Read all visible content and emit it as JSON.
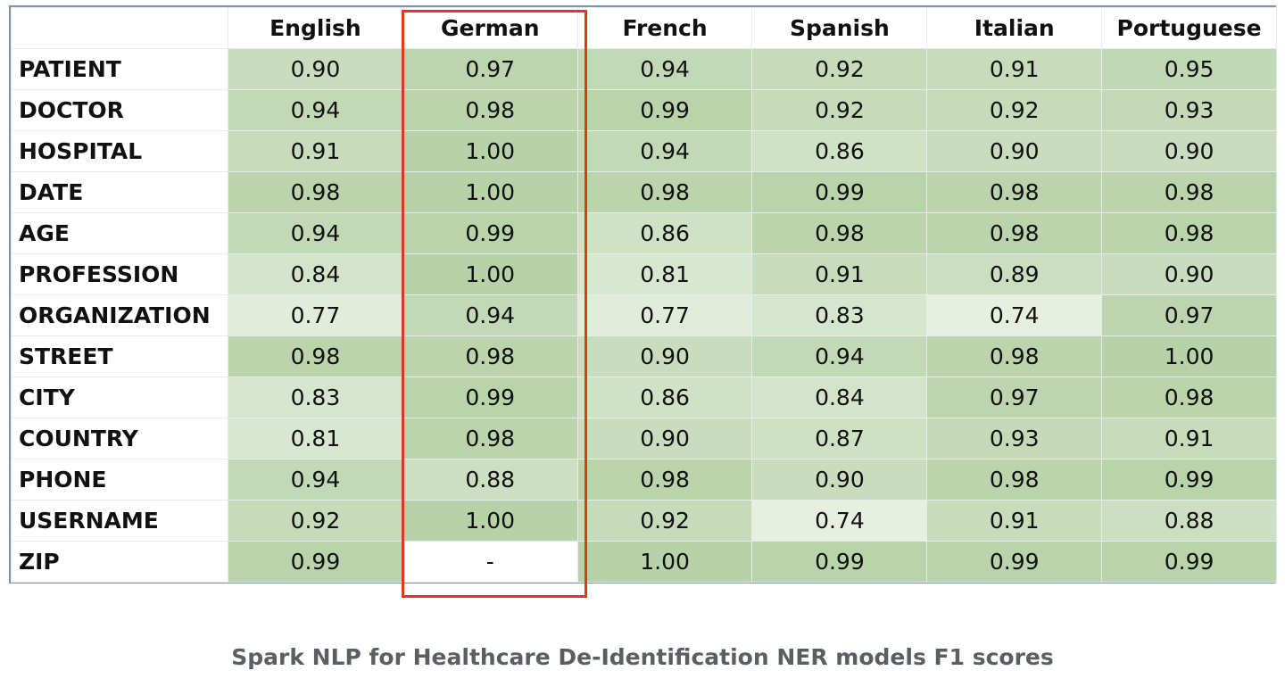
{
  "table": {
    "columns": [
      "English",
      "German",
      "French",
      "Spanish",
      "Italian",
      "Portuguese"
    ],
    "rows": [
      {
        "label": "PATIENT",
        "values": [
          "0.90",
          "0.97",
          "0.94",
          "0.92",
          "0.91",
          "0.95"
        ]
      },
      {
        "label": "DOCTOR",
        "values": [
          "0.94",
          "0.98",
          "0.99",
          "0.92",
          "0.92",
          "0.93"
        ]
      },
      {
        "label": "HOSPITAL",
        "values": [
          "0.91",
          "1.00",
          "0.94",
          "0.86",
          "0.90",
          "0.90"
        ]
      },
      {
        "label": "DATE",
        "values": [
          "0.98",
          "1.00",
          "0.98",
          "0.99",
          "0.98",
          "0.98"
        ]
      },
      {
        "label": "AGE",
        "values": [
          "0.94",
          "0.99",
          "0.86",
          "0.98",
          "0.98",
          "0.98"
        ]
      },
      {
        "label": "PROFESSION",
        "values": [
          "0.84",
          "1.00",
          "0.81",
          "0.91",
          "0.89",
          "0.90"
        ]
      },
      {
        "label": "ORGANIZATION",
        "values": [
          "0.77",
          "0.94",
          "0.77",
          "0.83",
          "0.74",
          "0.97"
        ]
      },
      {
        "label": "STREET",
        "values": [
          "0.98",
          "0.98",
          "0.90",
          "0.94",
          "0.98",
          "1.00"
        ]
      },
      {
        "label": "CITY",
        "values": [
          "0.83",
          "0.99",
          "0.86",
          "0.84",
          "0.97",
          "0.98"
        ]
      },
      {
        "label": "COUNTRY",
        "values": [
          "0.81",
          "0.98",
          "0.90",
          "0.87",
          "0.93",
          "0.91"
        ]
      },
      {
        "label": "PHONE",
        "values": [
          "0.94",
          "0.88",
          "0.98",
          "0.90",
          "0.98",
          "0.99"
        ]
      },
      {
        "label": "USERNAME",
        "values": [
          "0.92",
          "1.00",
          "0.92",
          "0.74",
          "0.91",
          "0.88"
        ]
      },
      {
        "label": "ZIP",
        "values": [
          "0.99",
          "-",
          "1.00",
          "0.99",
          "0.99",
          "0.99"
        ]
      }
    ],
    "highlighted_column": "German"
  },
  "caption": "Spark NLP for Healthcare De-Identification NER models F1 scores",
  "colors": {
    "scale_low": "#e6efe0",
    "scale_high": "#b7d2a8",
    "empty_cell": "#ffffff",
    "highlight_border": "#e5351d",
    "table_border": "#7f93a8",
    "caption_text": "#5b5f63"
  }
}
